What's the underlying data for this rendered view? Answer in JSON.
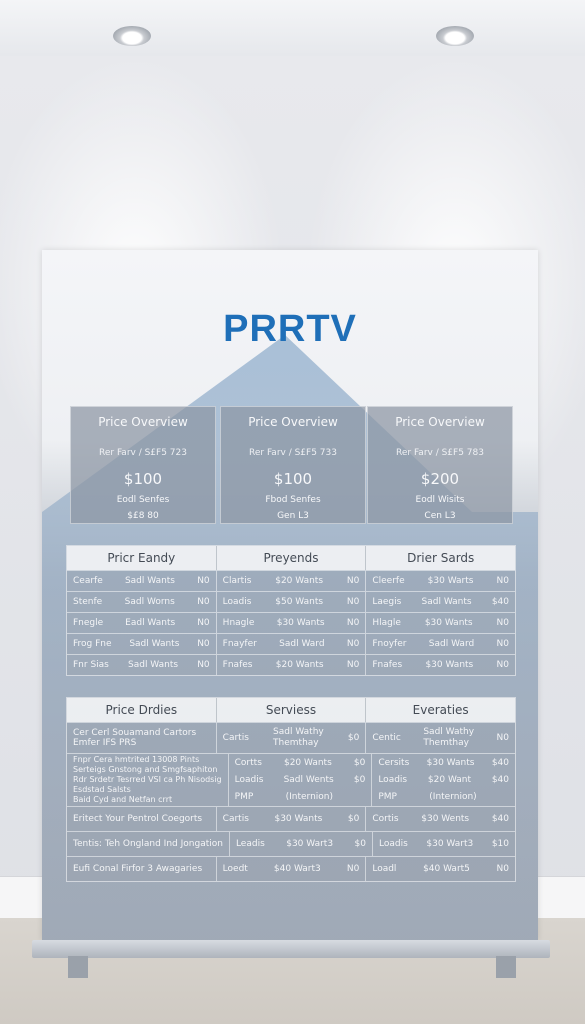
{
  "brand": "PRRTV",
  "cards": [
    {
      "title": "Price Overview",
      "sub": "Rer Farv / S£F5 723",
      "price": "$100",
      "foot": "Eodl Senfes",
      "foot2": "$£8 80"
    },
    {
      "title": "Price Overview",
      "sub": "Rer Farv / S£F5 733",
      "price": "$100",
      "foot": "Fbod Senfes",
      "foot2": "Gen L3"
    },
    {
      "title": "Price Overview",
      "sub": "Rer Farv / S£F5 783",
      "price": "$200",
      "foot": "Eodl Wisits",
      "foot2": "Cen L3"
    }
  ],
  "table1": {
    "headers": [
      "Pricr Eandy",
      "Preyends",
      "Drier Sards"
    ],
    "rows": [
      [
        [
          "Cearfe",
          "Sadl Wants",
          "N0"
        ],
        [
          "Clartis",
          "$20 Wants",
          "N0"
        ],
        [
          "Cleerfe",
          "$30 Warts",
          "N0"
        ]
      ],
      [
        [
          "Stenfe",
          "Sadl Worns",
          "N0"
        ],
        [
          "Loadis",
          "$50 Wants",
          "N0"
        ],
        [
          "Laegis",
          "Sadl Wants",
          "$40"
        ]
      ],
      [
        [
          "Fnegle",
          "Eadl Wants",
          "N0"
        ],
        [
          "Hnagle",
          "$30 Wants",
          "N0"
        ],
        [
          "Hlagle",
          "$30 Wants",
          "N0"
        ]
      ],
      [
        [
          "Frog Fne",
          "Sadl Wants",
          "N0"
        ],
        [
          "Fnayfer",
          "Sadl Ward",
          "N0"
        ],
        [
          "Fnoyfer",
          "Sadl Ward",
          "N0"
        ]
      ],
      [
        [
          "Fnr Sias",
          "Sadl Wants",
          "N0"
        ],
        [
          "Fnafes",
          "$20 Wants",
          "N0"
        ],
        [
          "Fnafes",
          "$30 Wants",
          "N0"
        ]
      ]
    ]
  },
  "table2": {
    "headers": [
      "Price Drdies",
      "Serviess",
      "Everaties"
    ],
    "rows": [
      [
        [
          "Cer Cerl Souamand Cartors",
          "Emfer IFS PRS"
        ],
        [
          "Cartis",
          "Sadl Wathy",
          "Themthay",
          "$0"
        ],
        [
          "Centic",
          "Sadl Wathy",
          "Themthay",
          "N0"
        ]
      ],
      [
        [
          "Fnpr Cera hmtrited 13008 Pints",
          "Serteigs Gnstong and Smgfsaphiton"
        ],
        [
          "Cortts",
          "$20 Wants",
          "",
          "$0"
        ],
        [
          "Cersits",
          "$30 Wants",
          "",
          "$40"
        ]
      ],
      [
        [
          "Rdr Srdetr Tesrred VSI ca Ph Nisodsig",
          "Esdstad Salsts",
          "Baid Cyd and Netfan crrt"
        ],
        [
          "Loadis",
          "Sadl Wents",
          "$0"
        ],
        [
          "Loadis",
          "$20 Want",
          "$40"
        ],
        [
          "PMP",
          "(Internion)",
          ""
        ],
        [
          "PMP",
          "(Internion)",
          ""
        ]
      ],
      [
        [
          "Eritect Your Pentrol Coegorts"
        ],
        [
          "Cartis",
          "$30 Wants",
          "$0"
        ],
        [
          "Cortis",
          "$30 Wents",
          "$40"
        ]
      ],
      [
        [
          "Tentis: Teh Ongland Ind Jongation"
        ],
        [
          "Leadis",
          "$30 Wart3",
          "$0"
        ],
        [
          "Loadis",
          "$30 Wart3",
          "$10"
        ]
      ],
      [
        [
          "Eufi Conal Firfor 3 Awagaries"
        ],
        [
          "Loedt",
          "$40 Wart3",
          "N0"
        ],
        [
          "Loadl",
          "$40 Wart5",
          "N0"
        ]
      ]
    ]
  }
}
